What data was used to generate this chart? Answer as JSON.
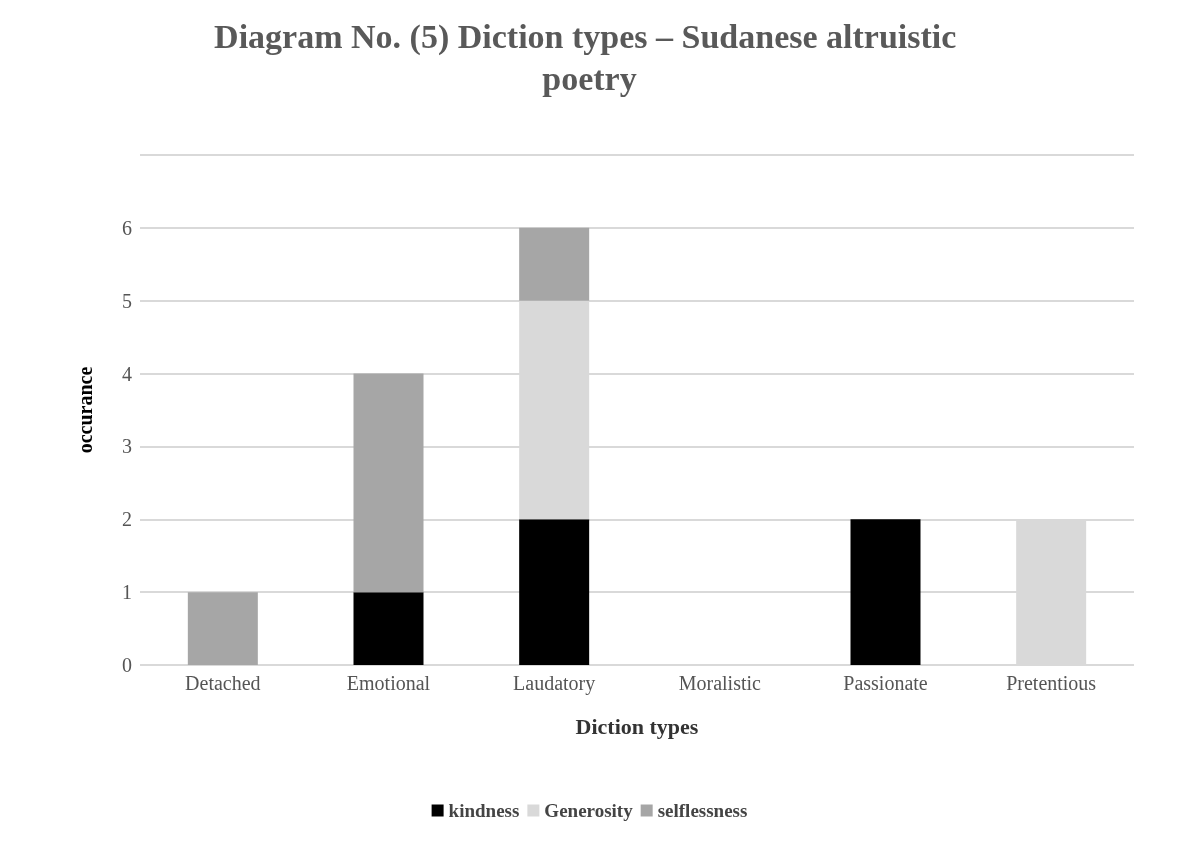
{
  "chart_data": {
    "type": "bar",
    "title": "Diagram No. (5) Diction types – Sudanese altruistic poetry",
    "xlabel": "Diction types",
    "ylabel": "occurance",
    "categories": [
      "Detached",
      "Emotional",
      "Laudatory",
      "Moralistic",
      "Passionate",
      "Pretentious"
    ],
    "series": [
      {
        "name": "kindness",
        "color": "#000000",
        "values": [
          0,
          1,
          2,
          0,
          2,
          0
        ]
      },
      {
        "name": "Generosity",
        "color": "#d9d9d9",
        "values": [
          0,
          0,
          3,
          0,
          0,
          2
        ]
      },
      {
        "name": "selflessness",
        "color": "#a6a6a6",
        "values": [
          1,
          3,
          1,
          0,
          0,
          0
        ]
      }
    ],
    "stacked": true,
    "ylim": [
      0,
      7
    ],
    "yticks": [
      0,
      1,
      2,
      3,
      4,
      5,
      6,
      {
        "value": 7,
        "label": null
      }
    ],
    "grid": "y",
    "legend": "bottom"
  }
}
